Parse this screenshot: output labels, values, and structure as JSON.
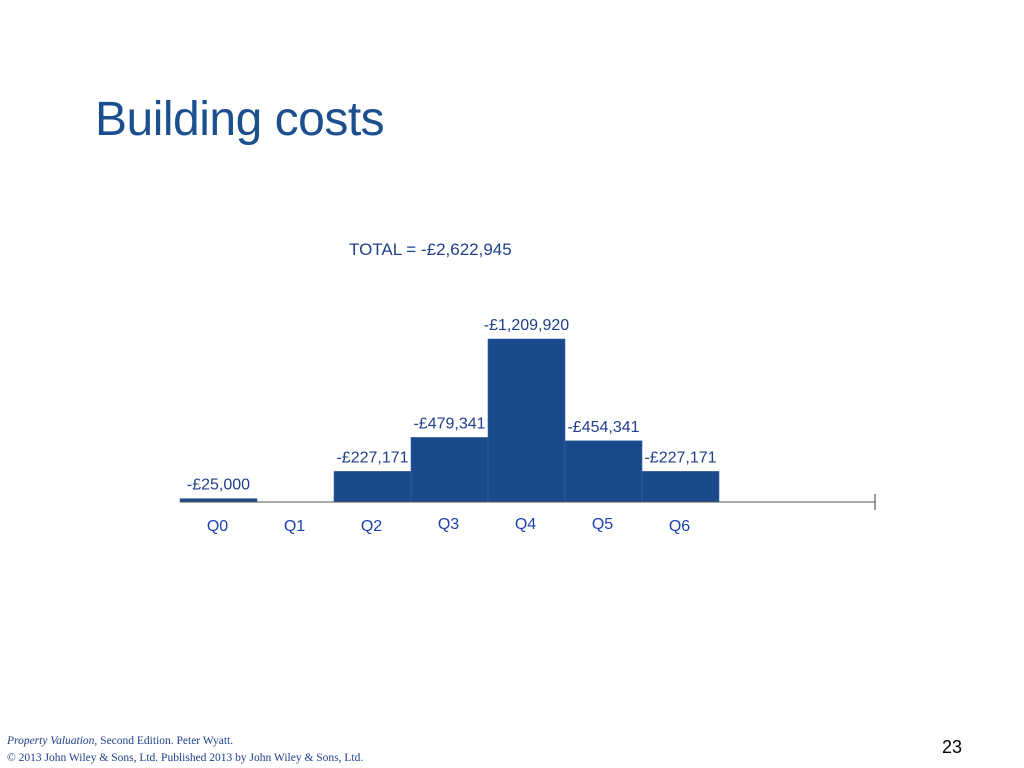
{
  "slide": {
    "title": "Building costs",
    "page_number": "23",
    "footer": {
      "book_title": "Property Valuation",
      "edition_author": ", Second Edition. Peter Wyatt.",
      "copyright": "© 2013 John Wiley & Sons, Ltd. Published 2013 by John Wiley & Sons, Ltd."
    }
  },
  "chart_data": {
    "type": "bar",
    "title": "TOTAL = -£2,622,945",
    "categories": [
      "Q0",
      "Q1",
      "Q2",
      "Q3",
      "Q4",
      "Q5",
      "Q6"
    ],
    "values": [
      -25000,
      0,
      -227171,
      -479341,
      -1209920,
      -454341,
      -227171
    ],
    "data_labels": [
      "-£25,000",
      "",
      "-£227,171",
      "-£479,341",
      "-£1,209,920",
      "-£454,341",
      "-£227,171"
    ],
    "bar_color": "#1a4a8c",
    "label_color": "#1f3f8a",
    "xlabel": "",
    "ylabel": "",
    "grid": false
  }
}
